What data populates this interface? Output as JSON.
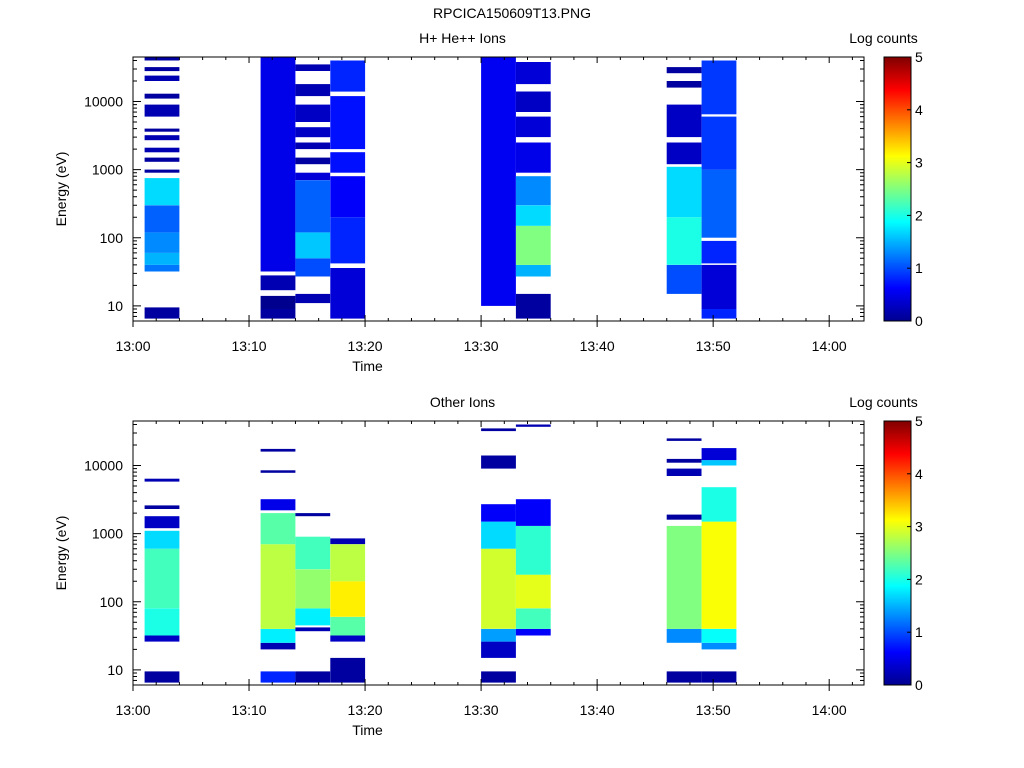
{
  "figure_title": "RPCICA150609T13.PNG",
  "colormap": [
    "#00008f",
    "#0000ff",
    "#0080ff",
    "#00ffff",
    "#80ff80",
    "#ffff00",
    "#ff8000",
    "#ff0000",
    "#800000"
  ],
  "chart_data": [
    {
      "type": "heatmap",
      "title": "H+ He++ Ions",
      "xlabel": "Time",
      "ylabel": "Energy (eV)",
      "colorbar_label": "Log counts",
      "colorbar_ticks": [
        "0",
        "1",
        "2",
        "3",
        "4",
        "5"
      ],
      "color_range": [
        0,
        5
      ],
      "x_tick_labels": [
        "13:00",
        "13:10",
        "13:20",
        "13:30",
        "13:40",
        "13:50",
        "14:00"
      ],
      "xlim": [
        "13:00",
        "14:03"
      ],
      "y_scale": "log",
      "ylim": [
        6,
        45000
      ],
      "y_tick_labels": [
        "10",
        "100",
        "1000",
        "10000"
      ],
      "columns": [
        {
          "time": [
            "13:01",
            "13:04"
          ],
          "segments": [
            {
              "e": [
                6.5,
                9.5
              ],
              "v": 0.1
            },
            {
              "e": [
                32,
                40
              ],
              "v": 1.2
            },
            {
              "e": [
                40,
                60
              ],
              "v": 1.5
            },
            {
              "e": [
                60,
                120
              ],
              "v": 1.3
            },
            {
              "e": [
                120,
                300
              ],
              "v": 1.1
            },
            {
              "e": [
                300,
                750
              ],
              "v": 1.7
            },
            {
              "e": [
                900,
                1000
              ],
              "v": 0.1
            },
            {
              "e": [
                1300,
                1500
              ],
              "v": 0.1
            },
            {
              "e": [
                1800,
                2100
              ],
              "v": 0.2
            },
            {
              "e": [
                2700,
                3200
              ],
              "v": 0.2
            },
            {
              "e": [
                3600,
                4000
              ],
              "v": 0.1
            },
            {
              "e": [
                6000,
                9000
              ],
              "v": 0.2
            },
            {
              "e": [
                11000,
                13000
              ],
              "v": 0.1
            },
            {
              "e": [
                20000,
                24000
              ],
              "v": 0.2
            },
            {
              "e": [
                28000,
                32000
              ],
              "v": 0.1
            },
            {
              "e": [
                40000,
                45000
              ],
              "v": 0.1
            }
          ]
        },
        {
          "time": [
            "13:11",
            "13:14"
          ],
          "segments": [
            {
              "e": [
                6.5,
                9
              ],
              "v": 0.1
            },
            {
              "e": [
                9,
                14
              ],
              "v": 0.0
            },
            {
              "e": [
                17,
                28
              ],
              "v": 0.2
            },
            {
              "e": [
                32,
                45000
              ],
              "v": 0.5
            }
          ]
        },
        {
          "time": [
            "13:14",
            "13:17"
          ],
          "segments": [
            {
              "e": [
                11,
                15
              ],
              "v": 0.2
            },
            {
              "e": [
                27,
                50
              ],
              "v": 1.0
            },
            {
              "e": [
                50,
                120
              ],
              "v": 1.6
            },
            {
              "e": [
                120,
                700
              ],
              "v": 1.1
            },
            {
              "e": [
                700,
                900
              ],
              "v": 0.4
            },
            {
              "e": [
                1200,
                1500
              ],
              "v": 0.1
            },
            {
              "e": [
                2000,
                2500
              ],
              "v": 0.2
            },
            {
              "e": [
                3000,
                4200
              ],
              "v": 0.3
            },
            {
              "e": [
                5000,
                9000
              ],
              "v": 0.3
            },
            {
              "e": [
                12000,
                18000
              ],
              "v": 0.2
            },
            {
              "e": [
                28000,
                35000
              ],
              "v": 0.2
            }
          ]
        },
        {
          "time": [
            "13:17",
            "13:20"
          ],
          "segments": [
            {
              "e": [
                6.5,
                36
              ],
              "v": 0.4
            },
            {
              "e": [
                42,
                200
              ],
              "v": 0.8
            },
            {
              "e": [
                200,
                800
              ],
              "v": 0.6
            },
            {
              "e": [
                900,
                1800
              ],
              "v": 0.7
            },
            {
              "e": [
                2000,
                12000
              ],
              "v": 0.7
            },
            {
              "e": [
                14000,
                40000
              ],
              "v": 0.8
            }
          ]
        },
        {
          "time": [
            "13:30",
            "13:33"
          ],
          "segments": [
            {
              "e": [
                10,
                45000
              ],
              "v": 0.55
            }
          ]
        },
        {
          "time": [
            "13:33",
            "13:36"
          ],
          "segments": [
            {
              "e": [
                6.5,
                15
              ],
              "v": 0.1
            },
            {
              "e": [
                27,
                40
              ],
              "v": 1.5
            },
            {
              "e": [
                40,
                150
              ],
              "v": 2.5
            },
            {
              "e": [
                150,
                300
              ],
              "v": 1.7
            },
            {
              "e": [
                300,
                800
              ],
              "v": 1.3
            },
            {
              "e": [
                900,
                2500
              ],
              "v": 0.5
            },
            {
              "e": [
                3000,
                6000
              ],
              "v": 0.4
            },
            {
              "e": [
                7000,
                14000
              ],
              "v": 0.3
            },
            {
              "e": [
                18000,
                38000
              ],
              "v": 0.4
            }
          ]
        },
        {
          "time": [
            "13:46",
            "13:49"
          ],
          "segments": [
            {
              "e": [
                15,
                40
              ],
              "v": 1.0
            },
            {
              "e": [
                40,
                200
              ],
              "v": 2.0
            },
            {
              "e": [
                200,
                1100
              ],
              "v": 1.7
            },
            {
              "e": [
                1200,
                2500
              ],
              "v": 0.3
            },
            {
              "e": [
                3000,
                9000
              ],
              "v": 0.3
            },
            {
              "e": [
                16000,
                20000
              ],
              "v": 0.1
            },
            {
              "e": [
                26000,
                32000
              ],
              "v": 0.1
            }
          ]
        },
        {
          "time": [
            "13:49",
            "13:52"
          ],
          "segments": [
            {
              "e": [
                6.5,
                9
              ],
              "v": 0.8
            },
            {
              "e": [
                9,
                40
              ],
              "v": 0.4
            },
            {
              "e": [
                42,
                90
              ],
              "v": 0.8
            },
            {
              "e": [
                100,
                1000
              ],
              "v": 1.1
            },
            {
              "e": [
                1000,
                6000
              ],
              "v": 0.9
            },
            {
              "e": [
                6500,
                40000
              ],
              "v": 0.9
            }
          ]
        }
      ]
    },
    {
      "type": "heatmap",
      "title": "Other Ions",
      "xlabel": "Time",
      "ylabel": "Energy (eV)",
      "colorbar_label": "Log counts",
      "colorbar_ticks": [
        "0",
        "1",
        "2",
        "3",
        "4",
        "5"
      ],
      "color_range": [
        0,
        5
      ],
      "x_tick_labels": [
        "13:00",
        "13:10",
        "13:20",
        "13:30",
        "13:40",
        "13:50",
        "14:00"
      ],
      "xlim": [
        "13:00",
        "14:03"
      ],
      "y_scale": "log",
      "ylim": [
        6,
        45000
      ],
      "y_tick_labels": [
        "10",
        "100",
        "1000",
        "10000"
      ],
      "columns": [
        {
          "time": [
            "13:01",
            "13:04"
          ],
          "segments": [
            {
              "e": [
                6.5,
                9.5
              ],
              "v": 0.1
            },
            {
              "e": [
                26,
                32
              ],
              "v": 0.3
            },
            {
              "e": [
                32,
                80
              ],
              "v": 2.0
            },
            {
              "e": [
                80,
                600
              ],
              "v": 2.2
            },
            {
              "e": [
                600,
                1100
              ],
              "v": 1.7
            },
            {
              "e": [
                1200,
                1800
              ],
              "v": 0.3
            },
            {
              "e": [
                2300,
                2600
              ],
              "v": 0.1
            },
            {
              "e": [
                5800,
                6400
              ],
              "v": 0.2
            }
          ]
        },
        {
          "time": [
            "13:11",
            "13:14"
          ],
          "segments": [
            {
              "e": [
                6.5,
                9.5
              ],
              "v": 0.8
            },
            {
              "e": [
                20,
                25
              ],
              "v": 0.2
            },
            {
              "e": [
                25,
                40
              ],
              "v": 1.8
            },
            {
              "e": [
                40,
                700
              ],
              "v": 2.8
            },
            {
              "e": [
                700,
                2000
              ],
              "v": 2.3
            },
            {
              "e": [
                2200,
                3200
              ],
              "v": 0.5
            },
            {
              "e": [
                7800,
                8500
              ],
              "v": 0.1
            },
            {
              "e": [
                16000,
                17500
              ],
              "v": 0.1
            }
          ]
        },
        {
          "time": [
            "13:14",
            "13:17"
          ],
          "segments": [
            {
              "e": [
                6.5,
                9.5
              ],
              "v": 0.1
            },
            {
              "e": [
                37,
                42
              ],
              "v": 0.2
            },
            {
              "e": [
                45,
                80
              ],
              "v": 1.8
            },
            {
              "e": [
                80,
                300
              ],
              "v": 2.6
            },
            {
              "e": [
                300,
                900
              ],
              "v": 2.2
            },
            {
              "e": [
                1800,
                2000
              ],
              "v": 0.1
            }
          ]
        },
        {
          "time": [
            "13:17",
            "13:20"
          ],
          "segments": [
            {
              "e": [
                6.5,
                15
              ],
              "v": 0.1
            },
            {
              "e": [
                26,
                32
              ],
              "v": 0.3
            },
            {
              "e": [
                32,
                60
              ],
              "v": 2.3
            },
            {
              "e": [
                60,
                200
              ],
              "v": 3.2
            },
            {
              "e": [
                200,
                700
              ],
              "v": 2.8
            },
            {
              "e": [
                700,
                850
              ],
              "v": 0.2
            }
          ]
        },
        {
          "time": [
            "13:30",
            "13:33"
          ],
          "segments": [
            {
              "e": [
                6.5,
                9.5
              ],
              "v": 0.1
            },
            {
              "e": [
                15,
                26
              ],
              "v": 0.3
            },
            {
              "e": [
                26,
                40
              ],
              "v": 1.4
            },
            {
              "e": [
                40,
                600
              ],
              "v": 2.9
            },
            {
              "e": [
                600,
                1500
              ],
              "v": 1.7
            },
            {
              "e": [
                1500,
                2700
              ],
              "v": 0.6
            },
            {
              "e": [
                9000,
                14000
              ],
              "v": 0.1
            },
            {
              "e": [
                32000,
                35000
              ],
              "v": 0.1
            }
          ]
        },
        {
          "time": [
            "13:33",
            "13:36"
          ],
          "segments": [
            {
              "e": [
                32,
                40
              ],
              "v": 0.6
            },
            {
              "e": [
                40,
                80
              ],
              "v": 2.2
            },
            {
              "e": [
                80,
                250
              ],
              "v": 3.0
            },
            {
              "e": [
                250,
                1300
              ],
              "v": 2.1
            },
            {
              "e": [
                1300,
                3200
              ],
              "v": 0.6
            },
            {
              "e": [
                37000,
                40000
              ],
              "v": 0.2
            }
          ]
        },
        {
          "time": [
            "13:46",
            "13:49"
          ],
          "segments": [
            {
              "e": [
                6.5,
                9.5
              ],
              "v": 0.1
            },
            {
              "e": [
                25,
                40
              ],
              "v": 1.3
            },
            {
              "e": [
                40,
                1300
              ],
              "v": 2.5
            },
            {
              "e": [
                1600,
                1900
              ],
              "v": 0.1
            },
            {
              "e": [
                7000,
                9000
              ],
              "v": 0.2
            },
            {
              "e": [
                11000,
                12500
              ],
              "v": 0.1
            },
            {
              "e": [
                23000,
                25000
              ],
              "v": 0.1
            }
          ]
        },
        {
          "time": [
            "13:49",
            "13:52"
          ],
          "segments": [
            {
              "e": [
                6.5,
                9.5
              ],
              "v": 0.1
            },
            {
              "e": [
                20,
                25
              ],
              "v": 1.3
            },
            {
              "e": [
                25,
                40
              ],
              "v": 1.9
            },
            {
              "e": [
                40,
                1500
              ],
              "v": 3.1
            },
            {
              "e": [
                1500,
                4800
              ],
              "v": 2.0
            },
            {
              "e": [
                10000,
                12000
              ],
              "v": 1.6
            },
            {
              "e": [
                12000,
                18000
              ],
              "v": 0.4
            }
          ]
        }
      ]
    }
  ]
}
